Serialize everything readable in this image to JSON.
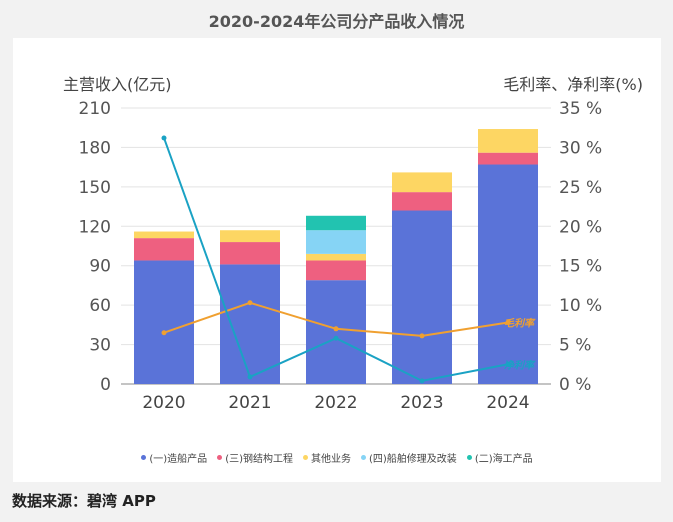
{
  "title": "2020-2024年公司分产品收入情况",
  "source": "数据来源：碧湾 APP",
  "chart_data": {
    "type": "bar",
    "stacked": true,
    "categories": [
      "2020",
      "2021",
      "2022",
      "2023",
      "2024"
    ],
    "left_axis": {
      "label": "主营收入(亿元)",
      "ylim": [
        0,
        210
      ],
      "ticks": [
        0,
        30,
        60,
        90,
        120,
        150,
        180,
        210
      ]
    },
    "right_axis": {
      "label": "毛利率、净利率(%)",
      "ylim": [
        0,
        35
      ],
      "ticks": [
        0,
        5,
        10,
        15,
        20,
        25,
        30,
        35
      ],
      "tick_labels": [
        "0 %",
        "5 %",
        "10 %",
        "15 %",
        "20 %",
        "25 %",
        "30 %",
        "35 %"
      ]
    },
    "series": [
      {
        "name": "(一)造船产品",
        "color": "#5a73d8",
        "values": [
          94,
          91,
          79,
          132,
          167
        ]
      },
      {
        "name": "(三)钢结构工程",
        "color": "#ee6080",
        "values": [
          17,
          17,
          15,
          14,
          9
        ]
      },
      {
        "name": "其他业务",
        "color": "#fdd663",
        "values": [
          5,
          9,
          5,
          15,
          18
        ]
      },
      {
        "name": "(四)船舶修理及改装",
        "color": "#86d4f5",
        "values": [
          0,
          0,
          18,
          0,
          0
        ]
      },
      {
        "name": "(二)海工产品",
        "color": "#22c3b0",
        "values": [
          0,
          0,
          11,
          0,
          0
        ]
      }
    ],
    "lines": [
      {
        "name": "毛利率",
        "color": "#f0a030",
        "axis": "right",
        "values": [
          6.5,
          10.3,
          7.0,
          6.1,
          7.8
        ],
        "label": "毛利率"
      },
      {
        "name": "净利率",
        "color": "#1aa2c4",
        "axis": "right",
        "values": [
          31.2,
          0.9,
          5.8,
          0.4,
          2.5
        ],
        "label": "净利率"
      }
    ]
  }
}
